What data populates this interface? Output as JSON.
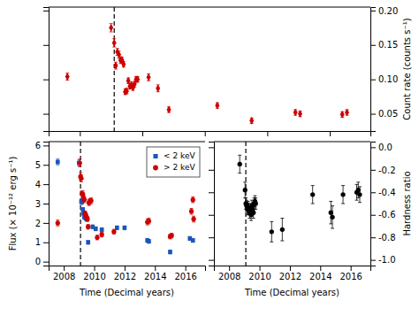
{
  "chart_data": [
    {
      "type": "scatter",
      "ylabel": "Count rate (counts s⁻¹)",
      "xlim": [
        2007.0,
        2017.3
      ],
      "xticks": [
        2008,
        2010,
        2012,
        2014,
        2016
      ],
      "ylim": [
        0.025,
        0.205
      ],
      "yticks": [
        0.05,
        {
          "value": 0.1,
          "label": "0.10"
        },
        0.15,
        {
          "value": 0.2,
          "label": "0.20"
        }
      ],
      "tick_labels": "y",
      "dashed_x": 2009.1,
      "series": [
        {
          "color": "#cc0000",
          "marker": "diamond",
          "x": [
            2007.6,
            2009.0,
            2009.1,
            2009.15,
            2009.2,
            2009.25,
            2009.3,
            2009.35,
            2009.4,
            2009.45,
            2009.5,
            2009.55,
            2009.6,
            2009.65,
            2009.7,
            2009.75,
            2009.8,
            2009.85,
            2010.2,
            2010.5,
            2010.85,
            2012.4,
            2013.5,
            2014.9,
            2015.05,
            2016.4,
            2016.55
          ],
          "values": [
            0.104,
            0.175,
            0.153,
            0.12,
            0.14,
            0.136,
            0.128,
            0.128,
            0.122,
            0.082,
            0.083,
            0.098,
            0.09,
            0.092,
            0.088,
            0.093,
            0.1,
            0.1,
            0.103,
            0.087,
            0.056,
            0.062,
            0.04,
            0.052,
            0.05,
            0.049,
            0.052
          ],
          "errors": [
            0.005,
            0.006,
            0.006,
            0.005,
            0.005,
            0.005,
            0.005,
            0.004,
            0.004,
            0.004,
            0.004,
            0.004,
            0.004,
            0.004,
            0.004,
            0.004,
            0.004,
            0.004,
            0.005,
            0.005,
            0.004,
            0.004,
            0.004,
            0.004,
            0.004,
            0.004,
            0.004
          ]
        }
      ]
    },
    {
      "type": "scatter",
      "ylabel": "Flux (× 10⁻¹² erg s⁻¹)",
      "xlabel": "Time (Decimal years)",
      "xlim": [
        2007.0,
        2017.3
      ],
      "xticks": [
        2008,
        2010,
        2012,
        2014,
        2016
      ],
      "ylim": [
        -0.2,
        6.2
      ],
      "yticks": [
        0,
        1,
        2,
        3,
        4,
        5,
        6
      ],
      "dashed_x": 2009.1,
      "legend": "upper right",
      "series": [
        {
          "name": "< 2 keV",
          "color": "#1a55bb",
          "marker": "square",
          "x": [
            2007.6,
            2009.0,
            2009.15,
            2009.2,
            2009.25,
            2009.3,
            2009.35,
            2009.4,
            2009.45,
            2009.5,
            2009.55,
            2009.6,
            2009.9,
            2010.1,
            2010.5,
            2011.5,
            2012.0,
            2013.5,
            2013.6,
            2015.0,
            2016.3,
            2016.5
          ],
          "values": [
            5.15,
            5.1,
            3.1,
            3.1,
            2.7,
            2.5,
            2.3,
            2.4,
            2.25,
            2.2,
            2.2,
            1.0,
            1.8,
            1.7,
            1.65,
            1.75,
            1.75,
            1.1,
            1.05,
            0.5,
            1.2,
            1.1
          ],
          "errors": [
            0.15,
            0.15,
            0.15,
            0.12,
            0.1,
            0.1,
            0.1,
            0.1,
            0.1,
            0.1,
            0.1,
            0.1,
            0.1,
            0.1,
            0.1,
            0.1,
            0.1,
            0.1,
            0.1,
            0.1,
            0.1,
            0.1
          ]
        },
        {
          "name": "> 2 keV",
          "color": "#cc0000",
          "marker": "circle",
          "x": [
            2007.6,
            2009.05,
            2009.1,
            2009.15,
            2009.2,
            2009.25,
            2009.3,
            2009.35,
            2009.4,
            2009.45,
            2009.5,
            2009.55,
            2009.6,
            2009.65,
            2009.7,
            2009.8,
            2010.2,
            2010.5,
            2011.3,
            2013.5,
            2013.6,
            2015.0,
            2015.1,
            2016.4,
            2016.5,
            2016.55
          ],
          "values": [
            2.0,
            5.1,
            4.4,
            4.3,
            3.5,
            3.5,
            3.3,
            3.2,
            2.5,
            2.4,
            2.3,
            2.2,
            1.8,
            3.05,
            3.1,
            3.15,
            1.25,
            1.4,
            1.55,
            2.05,
            2.1,
            1.3,
            1.35,
            2.6,
            3.2,
            2.2
          ],
          "errors": [
            0.15,
            0.2,
            0.2,
            0.18,
            0.15,
            0.15,
            0.15,
            0.15,
            0.12,
            0.12,
            0.12,
            0.12,
            0.12,
            0.15,
            0.15,
            0.15,
            0.12,
            0.12,
            0.12,
            0.15,
            0.15,
            0.12,
            0.12,
            0.15,
            0.15,
            0.15
          ]
        }
      ]
    },
    {
      "type": "scatter",
      "ylabel": "Hardness ratio",
      "xlabel": "Time (Decimal years)",
      "xlim": [
        2007.0,
        2017.3
      ],
      "xticks": [
        2008,
        2010,
        2012,
        2014,
        2016
      ],
      "ylim": [
        -1.05,
        0.05
      ],
      "yticks": [
        {
          "value": -1.0,
          "label": "-1.0"
        },
        -0.8,
        -0.6,
        -0.4,
        -0.2,
        {
          "value": 0.0,
          "label": "0.0"
        }
      ],
      "dashed_x": 2009.1,
      "series": [
        {
          "color": "black",
          "marker": "circle",
          "x": [
            2008.7,
            2009.05,
            2009.1,
            2009.15,
            2009.2,
            2009.25,
            2009.3,
            2009.35,
            2009.4,
            2009.45,
            2009.5,
            2009.55,
            2009.6,
            2009.65,
            2009.7,
            2009.75,
            2010.8,
            2011.5,
            2013.5,
            2014.7,
            2014.8,
            2015.5,
            2016.4,
            2016.5,
            2016.6
          ],
          "values": [
            -0.15,
            -0.38,
            -0.5,
            -0.52,
            -0.55,
            -0.53,
            -0.55,
            -0.58,
            -0.55,
            -0.6,
            -0.52,
            -0.55,
            -0.58,
            -0.5,
            -0.48,
            -0.5,
            -0.75,
            -0.73,
            -0.42,
            -0.58,
            -0.62,
            -0.42,
            -0.4,
            -0.38,
            -0.42
          ],
          "errors": [
            0.08,
            0.07,
            0.05,
            0.05,
            0.05,
            0.05,
            0.05,
            0.05,
            0.05,
            0.05,
            0.05,
            0.05,
            0.05,
            0.05,
            0.05,
            0.05,
            0.09,
            0.1,
            0.08,
            0.1,
            0.1,
            0.08,
            0.07,
            0.07,
            0.07
          ]
        }
      ]
    }
  ]
}
